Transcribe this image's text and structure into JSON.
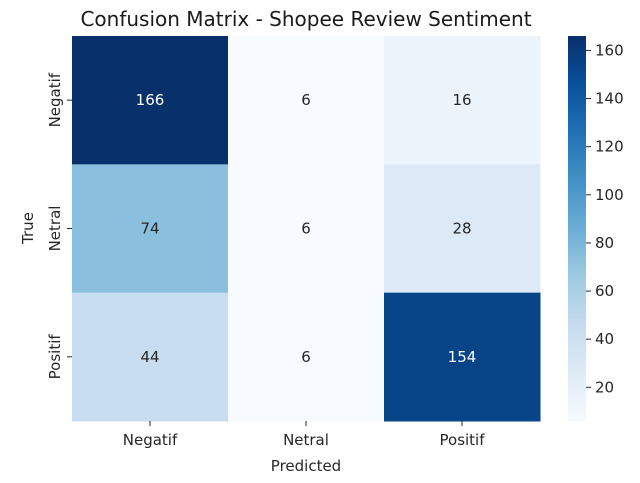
{
  "chart_data": {
    "type": "heatmap",
    "title": "Confusion Matrix - Shopee Review Sentiment",
    "xlabel": "Predicted",
    "ylabel": "True",
    "x_categories": [
      "Negatif",
      "Netral",
      "Positif"
    ],
    "y_categories": [
      "Negatif",
      "Netral",
      "Positif"
    ],
    "values": [
      [
        166,
        6,
        16
      ],
      [
        74,
        6,
        28
      ],
      [
        44,
        6,
        154
      ]
    ],
    "colormap": "Blues",
    "colorbar": {
      "min": 6,
      "max": 166,
      "ticks": [
        20,
        40,
        60,
        80,
        100,
        120,
        140,
        160
      ]
    }
  }
}
